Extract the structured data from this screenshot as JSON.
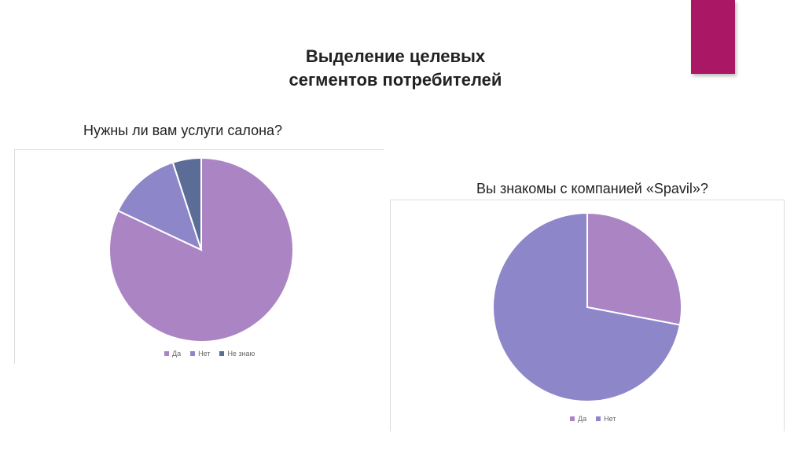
{
  "slide": {
    "title_line1": "Выделение целевых",
    "title_line2": "сегментов потребителей",
    "accent_color": "#a91765"
  },
  "chart_data": [
    {
      "type": "pie",
      "title": "Нужны ли вам услуги салона?",
      "categories": [
        "Да",
        "Нет",
        "Не знаю"
      ],
      "values": [
        82,
        13,
        5
      ],
      "colors": [
        "#ab84c3",
        "#8d87c9",
        "#5b6d96"
      ],
      "legend": "bottom"
    },
    {
      "type": "pie",
      "title": "Вы знакомы с компанией «Spavil»?",
      "categories": [
        "Да",
        "Нет"
      ],
      "values": [
        28,
        72
      ],
      "colors": [
        "#ab84c3",
        "#8d87c9"
      ],
      "legend": "bottom"
    }
  ]
}
